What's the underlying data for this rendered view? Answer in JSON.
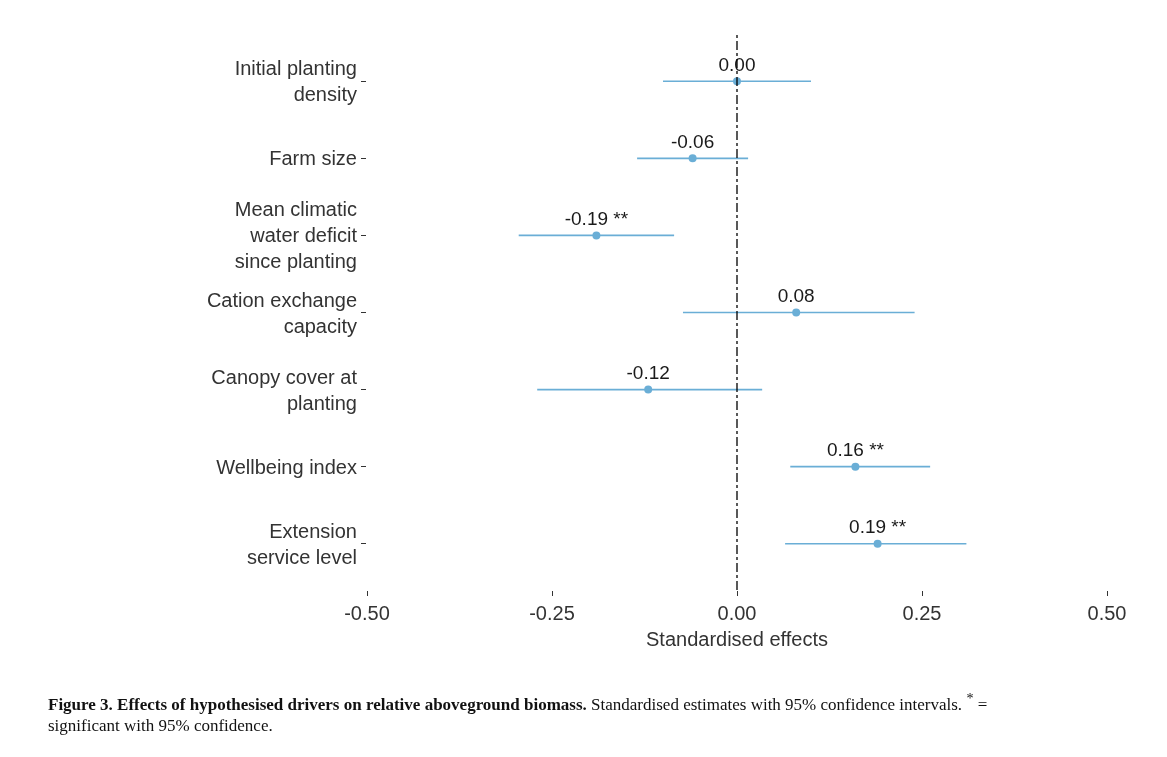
{
  "chart_data": {
    "type": "scatter",
    "orientation": "horizontal",
    "xlabel": "Standardised effects",
    "categories": [
      "Initial planting density",
      "Farm size",
      "Mean climatic water deficit since planting",
      "Cation exchange capacity",
      "Canopy cover at planting",
      "Wellbeing index",
      "Extension service level"
    ],
    "values": [
      0.0,
      -0.06,
      -0.19,
      0.08,
      -0.12,
      0.16,
      0.19
    ],
    "errors": [
      [
        -0.1,
        0.1
      ],
      [
        -0.135,
        0.015
      ],
      [
        -0.295,
        -0.085
      ],
      [
        -0.073,
        0.24
      ],
      [
        -0.27,
        0.034
      ],
      [
        0.072,
        0.261
      ],
      [
        0.065,
        0.31
      ]
    ],
    "value_labels": [
      "0.00",
      "-0.06",
      "-0.19 **",
      "0.08",
      "-0.12",
      "0.16 **",
      "0.19 **"
    ],
    "color": "#6aaed6",
    "marker": "circle",
    "grid": false,
    "xlim": [
      -0.5,
      0.5
    ],
    "xticks": [
      {
        "value": -0.5,
        "label": "-0.50"
      },
      {
        "value": -0.25,
        "label": "-0.25"
      },
      {
        "value": 0,
        "label": "0.00"
      },
      {
        "value": 0.25,
        "label": "0.25"
      },
      {
        "value": 0.5,
        "label": "0.50"
      }
    ],
    "ref_lines": [
      {
        "axis": "x",
        "value": 0,
        "label": null,
        "color": "#000000",
        "line_style": "dashed"
      }
    ],
    "annotations": [
      "Figure 3. Effects of hypothesised drivers on relative aboveground biomass.",
      "Standardised estimates with 95% confidence intervals. $^{*}$ = significant with 95% confidence."
    ]
  }
}
